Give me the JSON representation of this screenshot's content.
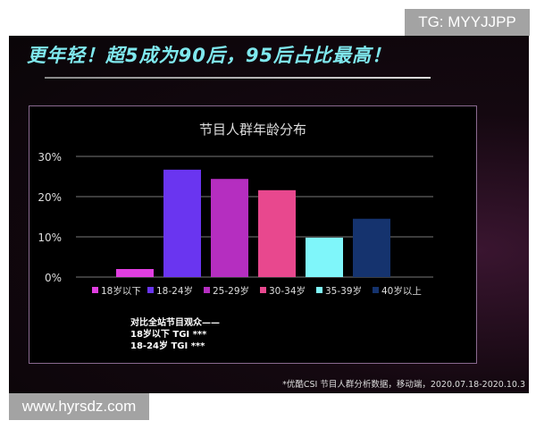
{
  "headline": "更年轻！超5成为90后，95后占比最高！",
  "watermarks": {
    "top_right": "TG: MYYJJPP",
    "bottom_left": "www.hyrsdz.com"
  },
  "chart_data": {
    "type": "bar",
    "title": "节目人群年龄分布",
    "categories": [
      "18岁以下",
      "18-24岁",
      "25-29岁",
      "30-34岁",
      "35-39岁",
      "40岁以上"
    ],
    "values": [
      2.0,
      26.7,
      24.4,
      21.6,
      9.8,
      14.5
    ],
    "colors": [
      "#e03ee0",
      "#6a35f0",
      "#b52ec0",
      "#e8488e",
      "#7ff6fa",
      "#15336e"
    ],
    "yticks": [
      "0%",
      "10%",
      "20%",
      "30%"
    ],
    "ylim": [
      0,
      30
    ],
    "grid": true,
    "legend": "bottom"
  },
  "tgi_note": [
    "对比全站节目观众——",
    "18岁以下 TGI ***",
    "18-24岁  TGI ***"
  ],
  "source": "*优酷CSI 节目人群分析数据，移动端，2020.07.18-2020.10.3"
}
